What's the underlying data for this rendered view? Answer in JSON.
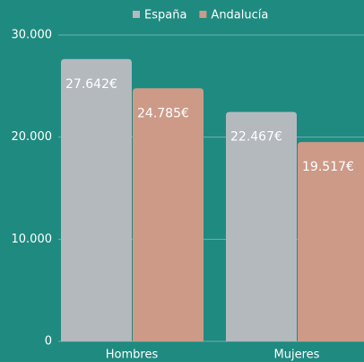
{
  "chart_data": {
    "type": "bar",
    "categories": [
      "Hombres",
      "Mujeres"
    ],
    "series": [
      {
        "name": "España",
        "color": "#b4b9be",
        "values": [
          27642,
          22467
        ],
        "value_labels": [
          "27.642€",
          "22.467€"
        ]
      },
      {
        "name": "Andalucía",
        "color": "#cd9a88",
        "values": [
          24785,
          19517
        ],
        "value_labels": [
          "24.785€",
          "19.517€"
        ]
      }
    ],
    "ylim": [
      0,
      30000
    ],
    "yticks": [
      {
        "value": 0,
        "label": "0"
      },
      {
        "value": 10000,
        "label": "10.000"
      },
      {
        "value": 20000,
        "label": "20.000"
      },
      {
        "value": 30000,
        "label": "30.000"
      }
    ],
    "grid": true,
    "legend": "top"
  }
}
